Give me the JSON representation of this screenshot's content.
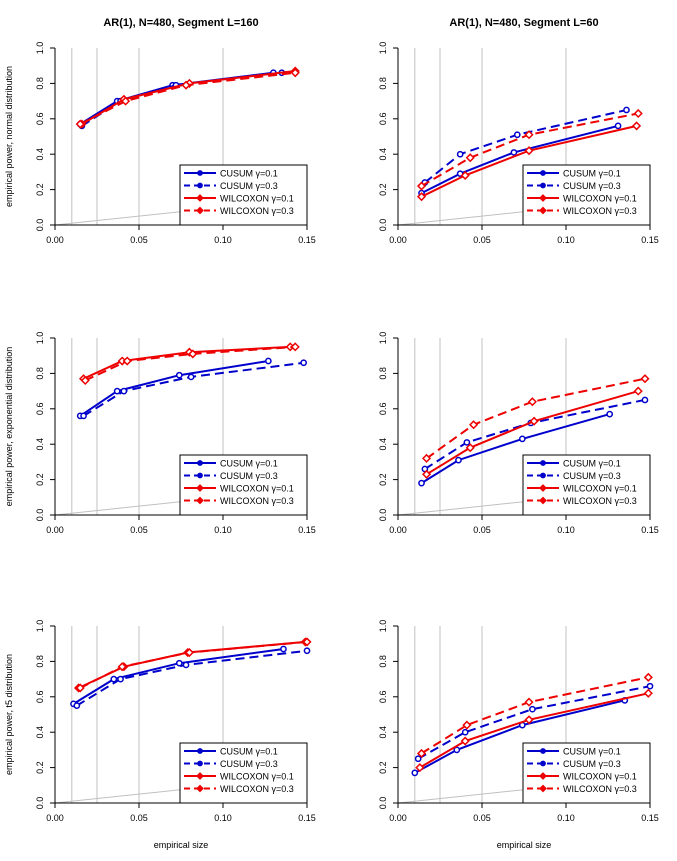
{
  "figure": {
    "xlabel": "empirical size",
    "col_titles": [
      "AR(1), N=480, Segment L=160",
      "AR(1), N=480, Segment L=60"
    ],
    "row_ylabels": [
      "empirical power, normal distribution",
      "empirical power, exponential distribution",
      "empirical power, t5 distribution"
    ]
  },
  "styles": {
    "blue": "#0000cc",
    "red": "#ee0000",
    "gridline": "#c0c0c0",
    "reference_line": "#c0c0c0"
  },
  "legend": [
    {
      "label": "CUSUM γ=0.1",
      "color": "#0000cc",
      "dash": "solid",
      "marker": "circle"
    },
    {
      "label": "CUSUM γ=0.3",
      "color": "#0000cc",
      "dash": "dashed",
      "marker": "circle"
    },
    {
      "label": "WILCOXON γ=0.1",
      "color": "#ee0000",
      "dash": "solid",
      "marker": "diamond"
    },
    {
      "label": "WILCOXON γ=0.3",
      "color": "#ee0000",
      "dash": "dashed",
      "marker": "diamond"
    }
  ],
  "chart_data": [
    {
      "type": "line",
      "title": "AR(1), N=480, Segment L=160",
      "xlabel": "",
      "ylabel": "empirical power, normal distribution",
      "xlim": [
        0,
        0.15
      ],
      "ylim": [
        0,
        1
      ],
      "xticks": [
        "0.00",
        "0.05",
        "0.10",
        "0.15"
      ],
      "yticks": [
        "0.0",
        "0.2",
        "0.4",
        "0.6",
        "0.8",
        "1.0"
      ],
      "vlines": [
        0.01,
        0.025,
        0.05,
        0.1
      ],
      "reference_line": [
        [
          0,
          0
        ],
        [
          0.15,
          0.15
        ]
      ],
      "legend_position": "bottom-right",
      "series": [
        {
          "name": "CUSUM γ=0.1",
          "x": [
            0.015,
            0.037,
            0.07,
            0.13
          ],
          "y": [
            0.57,
            0.7,
            0.79,
            0.86
          ]
        },
        {
          "name": "CUSUM γ=0.3",
          "x": [
            0.016,
            0.039,
            0.072,
            0.135
          ],
          "y": [
            0.56,
            0.7,
            0.79,
            0.86
          ]
        },
        {
          "name": "WILCOXON γ=0.1",
          "x": [
            0.016,
            0.041,
            0.08,
            0.143
          ],
          "y": [
            0.57,
            0.71,
            0.8,
            0.87
          ]
        },
        {
          "name": "WILCOXON γ=0.3",
          "x": [
            0.015,
            0.042,
            0.078,
            0.143
          ],
          "y": [
            0.57,
            0.7,
            0.79,
            0.86
          ]
        }
      ]
    },
    {
      "type": "line",
      "title": "AR(1), N=480, Segment L=60",
      "xlabel": "",
      "ylabel": "",
      "xlim": [
        0,
        0.15
      ],
      "ylim": [
        0,
        1
      ],
      "xticks": [
        "0.00",
        "0.05",
        "0.10",
        "0.15"
      ],
      "yticks": [
        "0.0",
        "0.2",
        "0.4",
        "0.6",
        "0.8",
        "1.0"
      ],
      "vlines": [
        0.01,
        0.025,
        0.05,
        0.1
      ],
      "reference_line": [
        [
          0,
          0
        ],
        [
          0.15,
          0.15
        ]
      ],
      "legend_position": "bottom-right",
      "series": [
        {
          "name": "CUSUM γ=0.1",
          "x": [
            0.014,
            0.037,
            0.069,
            0.131
          ],
          "y": [
            0.18,
            0.29,
            0.41,
            0.56
          ]
        },
        {
          "name": "CUSUM γ=0.3",
          "x": [
            0.016,
            0.037,
            0.071,
            0.136
          ],
          "y": [
            0.24,
            0.4,
            0.51,
            0.65
          ]
        },
        {
          "name": "WILCOXON γ=0.1",
          "x": [
            0.014,
            0.04,
            0.078,
            0.142
          ],
          "y": [
            0.16,
            0.28,
            0.42,
            0.56
          ]
        },
        {
          "name": "WILCOXON γ=0.3",
          "x": [
            0.014,
            0.043,
            0.078,
            0.143
          ],
          "y": [
            0.22,
            0.38,
            0.51,
            0.63
          ]
        }
      ]
    },
    {
      "type": "line",
      "title": "",
      "xlabel": "",
      "ylabel": "empirical power, exponential distribution",
      "xlim": [
        0,
        0.15
      ],
      "ylim": [
        0,
        1
      ],
      "xticks": [
        "0.00",
        "0.05",
        "0.10",
        "0.15"
      ],
      "yticks": [
        "0.0",
        "0.2",
        "0.4",
        "0.6",
        "0.8",
        "1.0"
      ],
      "vlines": [
        0.01,
        0.025,
        0.05,
        0.1
      ],
      "reference_line": [
        [
          0,
          0
        ],
        [
          0.15,
          0.15
        ]
      ],
      "legend_position": "bottom-right",
      "series": [
        {
          "name": "CUSUM γ=0.1",
          "x": [
            0.015,
            0.037,
            0.074,
            0.127
          ],
          "y": [
            0.56,
            0.7,
            0.79,
            0.87
          ]
        },
        {
          "name": "CUSUM γ=0.3",
          "x": [
            0.017,
            0.041,
            0.081,
            0.148
          ],
          "y": [
            0.56,
            0.7,
            0.78,
            0.86
          ]
        },
        {
          "name": "WILCOXON γ=0.1",
          "x": [
            0.017,
            0.04,
            0.08,
            0.14
          ],
          "y": [
            0.77,
            0.87,
            0.92,
            0.95
          ]
        },
        {
          "name": "WILCOXON γ=0.3",
          "x": [
            0.018,
            0.043,
            0.082,
            0.143
          ],
          "y": [
            0.76,
            0.87,
            0.91,
            0.95
          ]
        }
      ]
    },
    {
      "type": "line",
      "title": "",
      "xlabel": "",
      "ylabel": "",
      "xlim": [
        0,
        0.15
      ],
      "ylim": [
        0,
        1
      ],
      "xticks": [
        "0.00",
        "0.05",
        "0.10",
        "0.15"
      ],
      "yticks": [
        "0.0",
        "0.2",
        "0.4",
        "0.6",
        "0.8",
        "1.0"
      ],
      "vlines": [
        0.01,
        0.025,
        0.05,
        0.1
      ],
      "reference_line": [
        [
          0,
          0
        ],
        [
          0.15,
          0.15
        ]
      ],
      "legend_position": "bottom-right",
      "series": [
        {
          "name": "CUSUM γ=0.1",
          "x": [
            0.014,
            0.036,
            0.074,
            0.126
          ],
          "y": [
            0.18,
            0.31,
            0.43,
            0.57
          ]
        },
        {
          "name": "CUSUM γ=0.3",
          "x": [
            0.016,
            0.041,
            0.079,
            0.147
          ],
          "y": [
            0.26,
            0.41,
            0.52,
            0.65
          ]
        },
        {
          "name": "WILCOXON γ=0.1",
          "x": [
            0.017,
            0.043,
            0.081,
            0.143
          ],
          "y": [
            0.23,
            0.38,
            0.53,
            0.7
          ]
        },
        {
          "name": "WILCOXON γ=0.3",
          "x": [
            0.017,
            0.045,
            0.08,
            0.147
          ],
          "y": [
            0.32,
            0.51,
            0.64,
            0.77
          ]
        }
      ]
    },
    {
      "type": "line",
      "title": "",
      "xlabel": "empirical size",
      "ylabel": "empirical power, t5 distribution",
      "xlim": [
        0,
        0.15
      ],
      "ylim": [
        0,
        1
      ],
      "xticks": [
        "0.00",
        "0.05",
        "0.10",
        "0.15"
      ],
      "yticks": [
        "0.0",
        "0.2",
        "0.4",
        "0.6",
        "0.8",
        "1.0"
      ],
      "vlines": [
        0.01,
        0.025,
        0.05,
        0.1
      ],
      "reference_line": [
        [
          0,
          0
        ],
        [
          0.15,
          0.15
        ]
      ],
      "legend_position": "bottom-right",
      "series": [
        {
          "name": "CUSUM γ=0.1",
          "x": [
            0.011,
            0.035,
            0.074,
            0.136
          ],
          "y": [
            0.56,
            0.7,
            0.79,
            0.87
          ]
        },
        {
          "name": "CUSUM γ=0.3",
          "x": [
            0.013,
            0.039,
            0.078,
            0.15
          ],
          "y": [
            0.55,
            0.7,
            0.78,
            0.86
          ]
        },
        {
          "name": "WILCOXON γ=0.1",
          "x": [
            0.014,
            0.041,
            0.079,
            0.149
          ],
          "y": [
            0.65,
            0.77,
            0.85,
            0.91
          ]
        },
        {
          "name": "WILCOXON γ=0.3",
          "x": [
            0.015,
            0.04,
            0.08,
            0.15
          ],
          "y": [
            0.65,
            0.77,
            0.85,
            0.91
          ]
        }
      ]
    },
    {
      "type": "line",
      "title": "",
      "xlabel": "empirical size",
      "ylabel": "",
      "xlim": [
        0,
        0.15
      ],
      "ylim": [
        0,
        1
      ],
      "xticks": [
        "0.00",
        "0.05",
        "0.10",
        "0.15"
      ],
      "yticks": [
        "0.0",
        "0.2",
        "0.4",
        "0.6",
        "0.8",
        "1.0"
      ],
      "vlines": [
        0.01,
        0.025,
        0.05,
        0.1
      ],
      "reference_line": [
        [
          0,
          0
        ],
        [
          0.15,
          0.15
        ]
      ],
      "legend_position": "bottom-right",
      "series": [
        {
          "name": "CUSUM γ=0.1",
          "x": [
            0.01,
            0.035,
            0.074,
            0.135
          ],
          "y": [
            0.17,
            0.3,
            0.44,
            0.58
          ]
        },
        {
          "name": "CUSUM γ=0.3",
          "x": [
            0.012,
            0.04,
            0.08,
            0.15
          ],
          "y": [
            0.25,
            0.4,
            0.53,
            0.66
          ]
        },
        {
          "name": "WILCOXON γ=0.1",
          "x": [
            0.013,
            0.04,
            0.078,
            0.149
          ],
          "y": [
            0.2,
            0.35,
            0.47,
            0.62
          ]
        },
        {
          "name": "WILCOXON γ=0.3",
          "x": [
            0.014,
            0.041,
            0.078,
            0.149
          ],
          "y": [
            0.28,
            0.44,
            0.57,
            0.71
          ]
        }
      ]
    }
  ]
}
